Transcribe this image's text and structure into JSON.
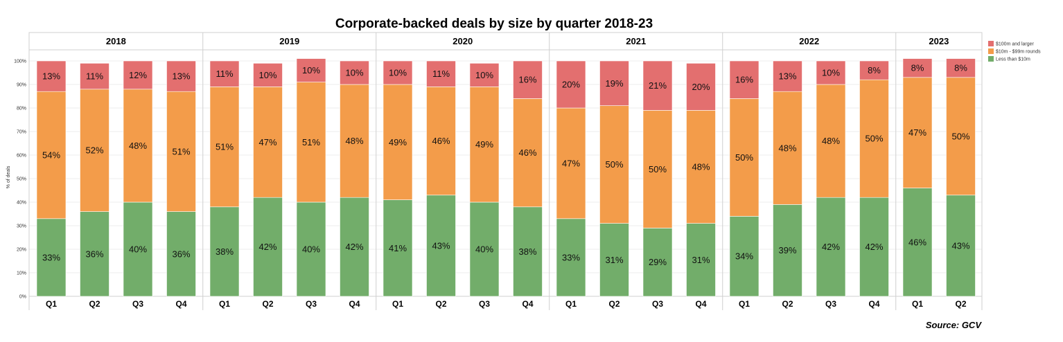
{
  "chart_data": {
    "type": "bar",
    "stacked": true,
    "title": "Corporate-backed deals by size by quarter 2018-23",
    "ylabel": "% of deals",
    "xlabel": "",
    "ylim": [
      0,
      100
    ],
    "y_ticks": [
      "0%",
      "10%",
      "20%",
      "30%",
      "40%",
      "50%",
      "60%",
      "70%",
      "80%",
      "90%",
      "100%"
    ],
    "groups": [
      {
        "year": "2018",
        "quarters": [
          "Q1",
          "Q2",
          "Q3",
          "Q4"
        ]
      },
      {
        "year": "2019",
        "quarters": [
          "Q1",
          "Q2",
          "Q3",
          "Q4"
        ]
      },
      {
        "year": "2020",
        "quarters": [
          "Q1",
          "Q2",
          "Q3",
          "Q4"
        ]
      },
      {
        "year": "2021",
        "quarters": [
          "Q1",
          "Q2",
          "Q3",
          "Q4"
        ]
      },
      {
        "year": "2022",
        "quarters": [
          "Q1",
          "Q2",
          "Q3",
          "Q4"
        ]
      },
      {
        "year": "2023",
        "quarters": [
          "Q1",
          "Q2"
        ]
      }
    ],
    "series": [
      {
        "name": "Less than $10m",
        "color": "#72ad6a",
        "values": [
          33,
          36,
          40,
          36,
          38,
          42,
          40,
          42,
          41,
          43,
          40,
          38,
          33,
          31,
          29,
          31,
          34,
          39,
          42,
          42,
          46,
          43
        ]
      },
      {
        "name": "$10m - $99m rounds",
        "color": "#f39c4a",
        "values": [
          54,
          52,
          48,
          51,
          51,
          47,
          51,
          48,
          49,
          46,
          49,
          46,
          47,
          50,
          50,
          48,
          50,
          48,
          48,
          50,
          47,
          50
        ]
      },
      {
        "name": "$100m and larger",
        "color": "#e36f6f",
        "values": [
          13,
          11,
          12,
          13,
          11,
          10,
          10,
          10,
          10,
          11,
          10,
          16,
          20,
          19,
          21,
          20,
          16,
          13,
          10,
          8,
          8,
          8
        ]
      }
    ],
    "legend_order": [
      "$100m and larger",
      "$10m - $99m rounds",
      "Less than $10m"
    ],
    "legend_position": "top-right",
    "grid": true,
    "source": "Source: GCV"
  }
}
